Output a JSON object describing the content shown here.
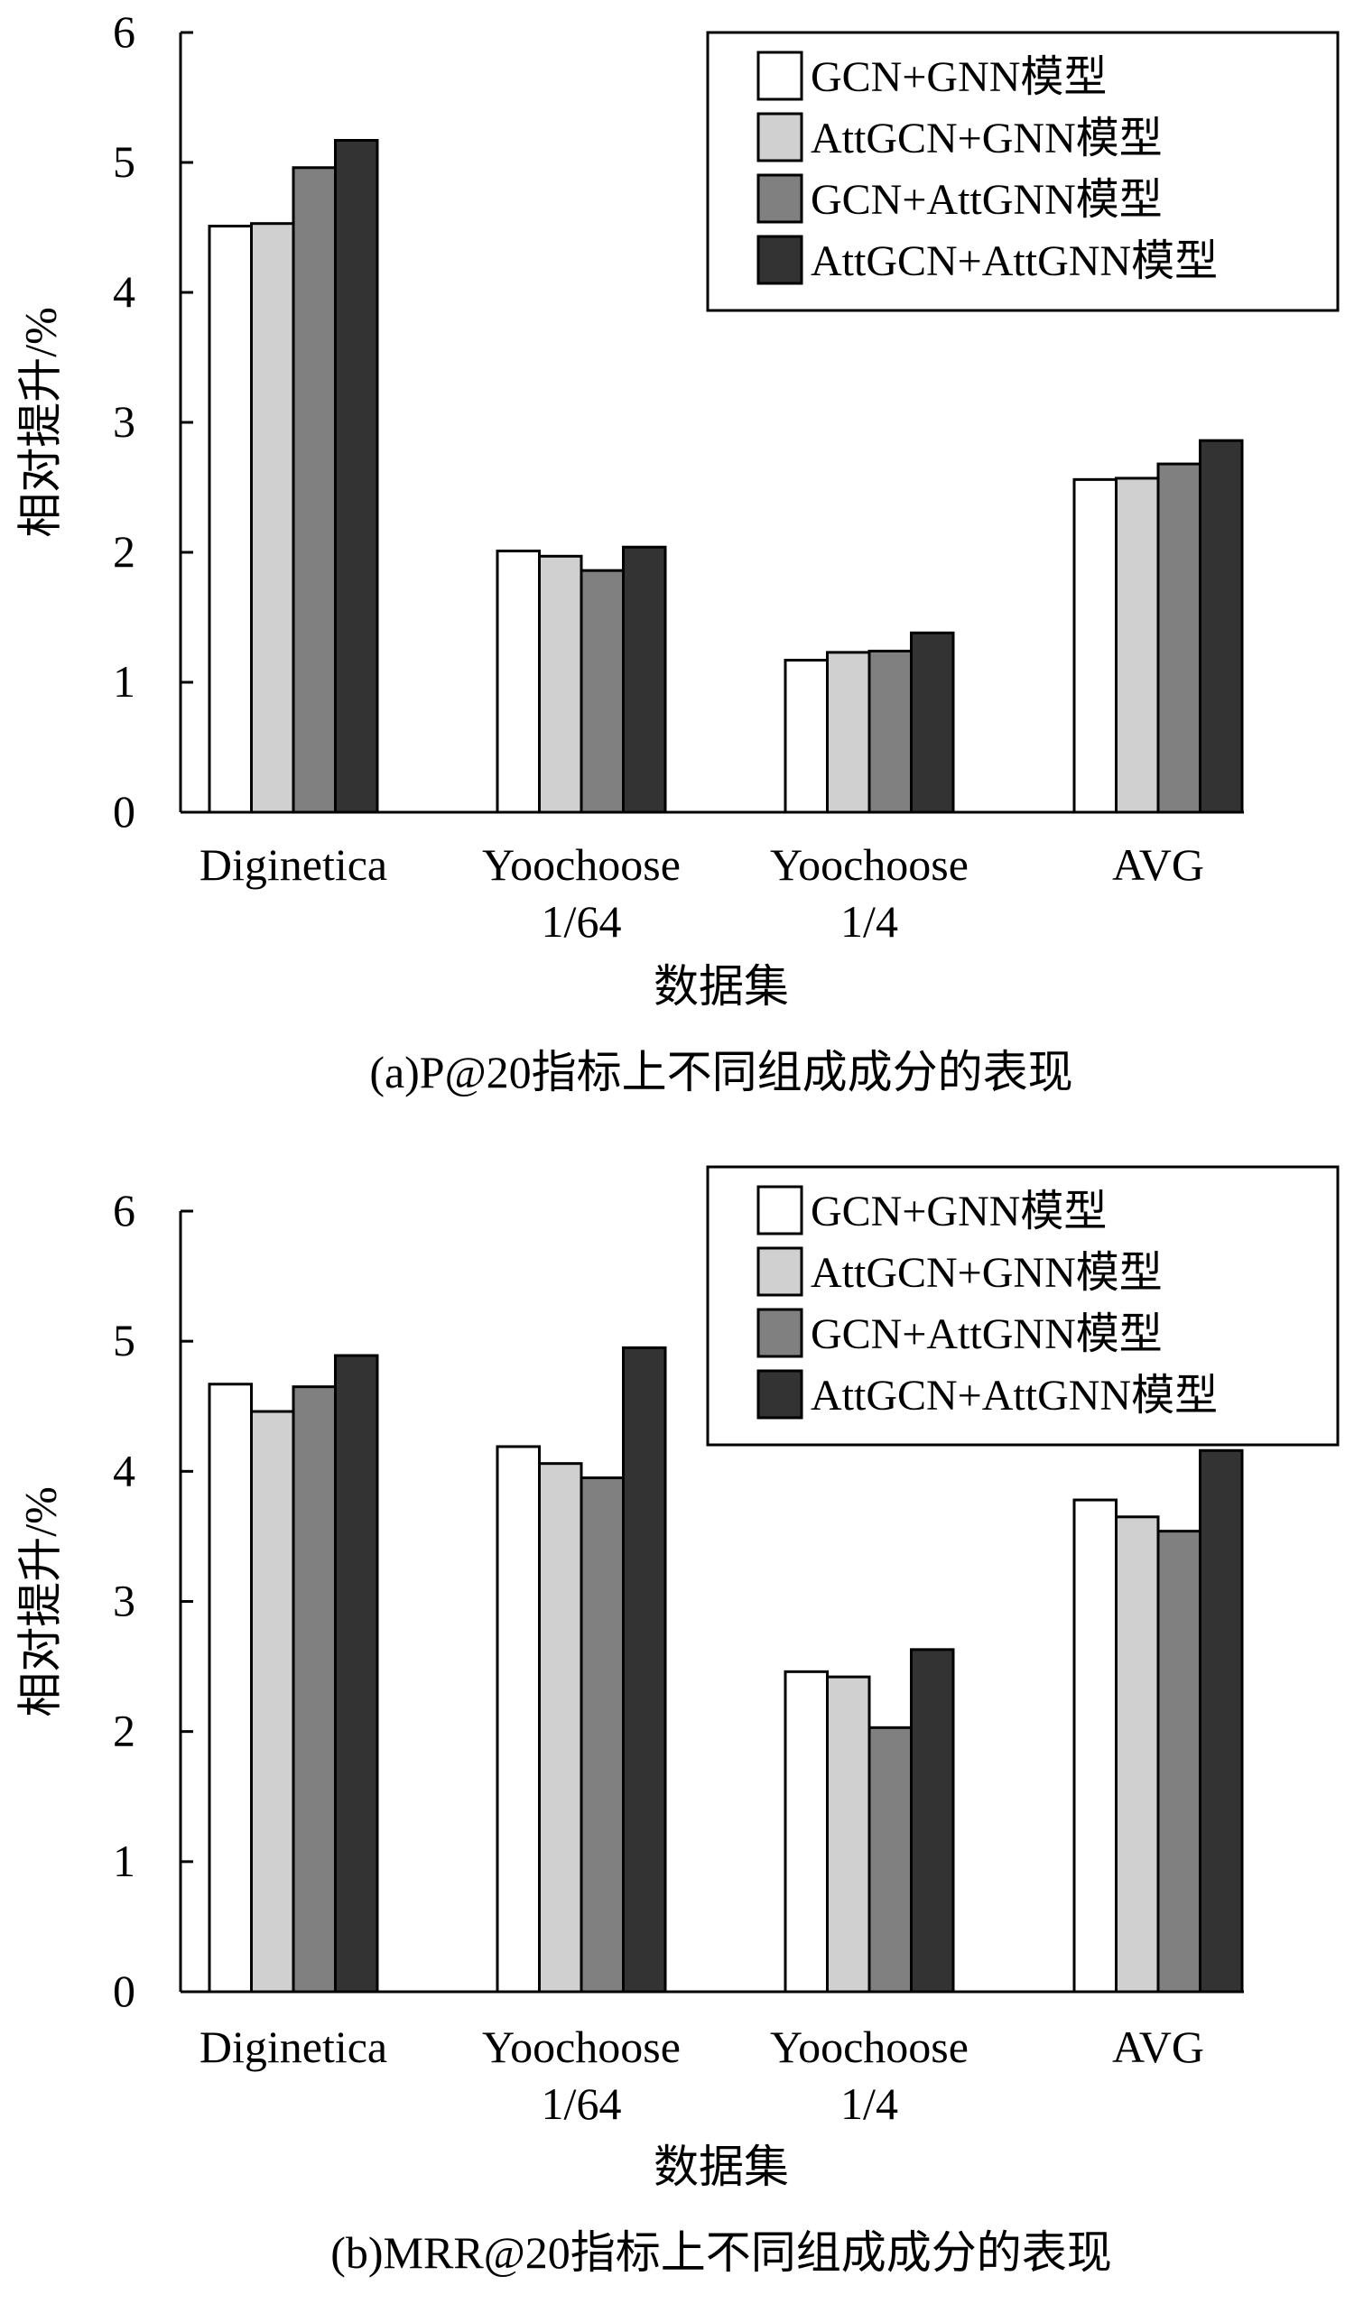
{
  "colors": {
    "series": [
      "#ffffff",
      "#d0d0d0",
      "#808080",
      "#333333"
    ],
    "stroke": "#000000"
  },
  "chart_data": [
    {
      "type": "bar",
      "caption": "(a)P@20指标上不同组成成分的表现",
      "xlabel": "数据集",
      "ylabel": "相对提升/%",
      "ylim": [
        0,
        6
      ],
      "yticks": [
        0,
        1,
        2,
        3,
        4,
        5,
        6
      ],
      "categories": [
        {
          "line1": "Diginetica",
          "line2": ""
        },
        {
          "line1": "Yoochoose",
          "line2": "1/64"
        },
        {
          "line1": "Yoochoose",
          "line2": "1/4"
        },
        {
          "line1": "AVG",
          "line2": ""
        }
      ],
      "legend_position": "top-right",
      "grid": false,
      "series": [
        {
          "name": "GCN+GNN模型",
          "values": [
            4.51,
            2.01,
            1.17,
            2.56
          ]
        },
        {
          "name": "AttGCN+GNN模型",
          "values": [
            4.53,
            1.97,
            1.23,
            2.57
          ]
        },
        {
          "name": "GCN+AttGNN模型",
          "values": [
            4.96,
            1.86,
            1.24,
            2.68
          ]
        },
        {
          "name": "AttGCN+AttGNN模型",
          "values": [
            5.17,
            2.04,
            1.38,
            2.86
          ]
        }
      ]
    },
    {
      "type": "bar",
      "caption": "(b)MRR@20指标上不同组成成分的表现",
      "xlabel": "数据集",
      "ylabel": "相对提升/%",
      "ylim": [
        0,
        6
      ],
      "yticks": [
        0,
        1,
        2,
        3,
        4,
        5,
        6
      ],
      "categories": [
        {
          "line1": "Diginetica",
          "line2": ""
        },
        {
          "line1": "Yoochoose",
          "line2": "1/64"
        },
        {
          "line1": "Yoochoose",
          "line2": "1/4"
        },
        {
          "line1": "AVG",
          "line2": ""
        }
      ],
      "legend_position": "top-right",
      "grid": false,
      "series": [
        {
          "name": "GCN+GNN模型",
          "values": [
            4.67,
            4.19,
            2.46,
            3.78
          ]
        },
        {
          "name": "AttGCN+GNN模型",
          "values": [
            4.46,
            4.06,
            2.42,
            3.65
          ]
        },
        {
          "name": "GCN+AttGNN模型",
          "values": [
            4.65,
            3.95,
            2.03,
            3.54
          ]
        },
        {
          "name": "AttGCN+AttGNN模型",
          "values": [
            4.89,
            4.95,
            2.63,
            4.16
          ]
        }
      ]
    }
  ]
}
